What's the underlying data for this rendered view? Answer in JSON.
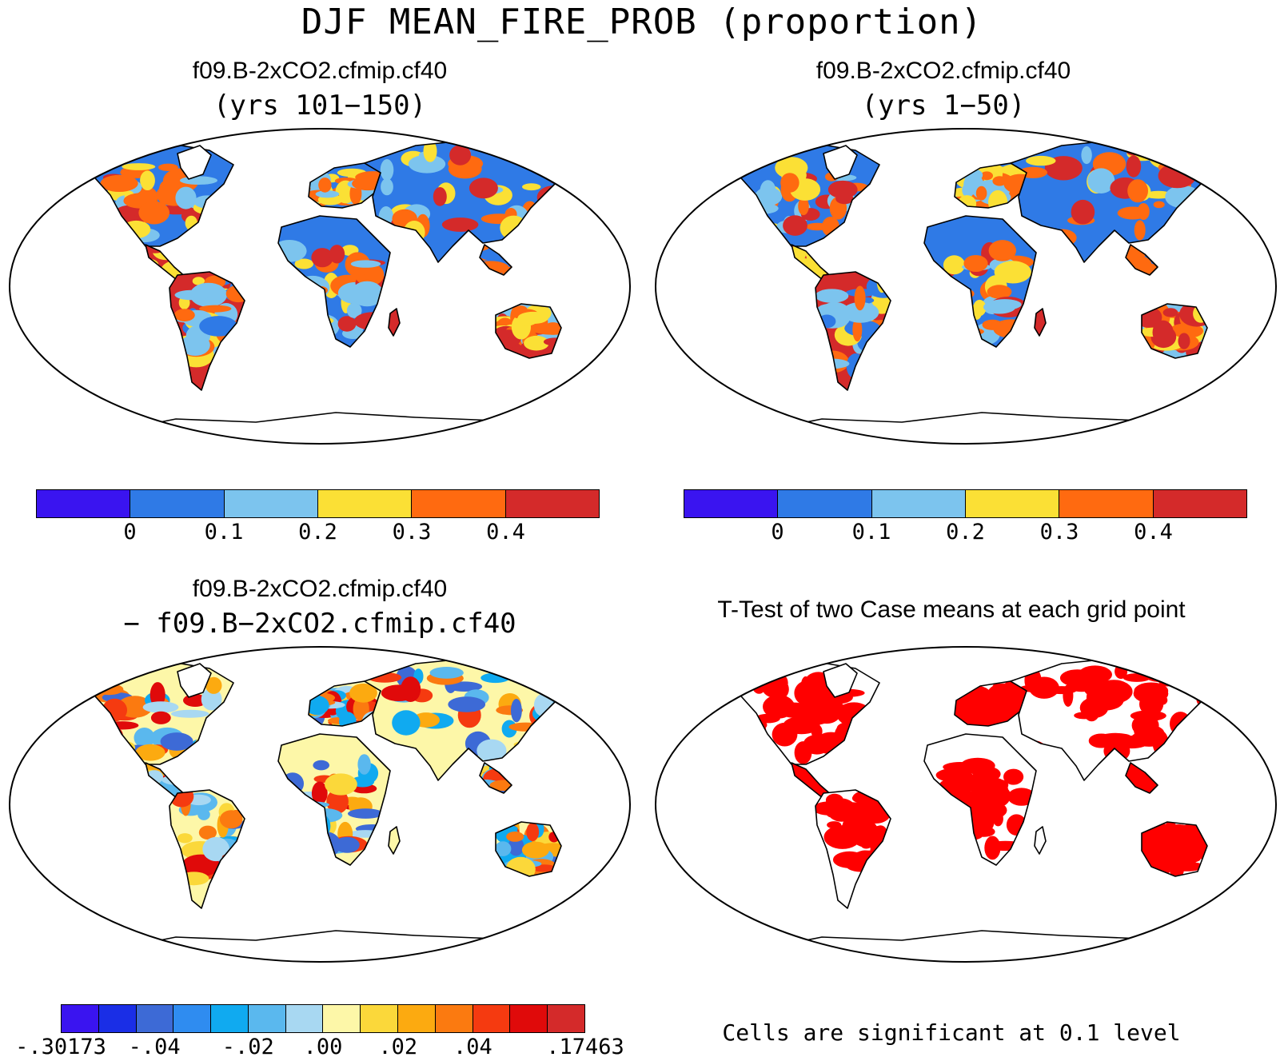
{
  "figure": {
    "title": "DJF MEAN_FIRE_PROB (proportion)",
    "footnote": "Cells are significant at 0.1 level"
  },
  "panels": [
    {
      "title": "f09.B-2xCO2.cfmip.cf40",
      "subtitle": "(yrs 101−150)"
    },
    {
      "title": "f09.B-2xCO2.cfmip.cf40",
      "subtitle": "(yrs 1−50)"
    },
    {
      "title": "f09.B-2xCO2.cfmip.cf40",
      "subtitle": "− f09.B−2xCO2.cfmip.cf40"
    },
    {
      "title": "T-Test of two Case means at each grid point",
      "subtitle": ""
    }
  ],
  "colorbars": {
    "mean": {
      "colors": [
        "#3a14f0",
        "#2f7ae6",
        "#7cc4ee",
        "#fbe035",
        "#ff6a10",
        "#d42a2a"
      ],
      "ticks": [
        "0",
        "0.1",
        "0.2",
        "0.3",
        "0.4"
      ]
    },
    "diff": {
      "colors": [
        "#3a14f0",
        "#1a2ee6",
        "#3d6ad6",
        "#2f8cf0",
        "#10aaf0",
        "#5ab8ee",
        "#a8d8f2",
        "#fdf7a8",
        "#fbd83a",
        "#fcaa10",
        "#fb7a10",
        "#f53a10",
        "#e00a0a",
        "#d42a2a"
      ],
      "ticks": [
        "-.30173",
        "-.04",
        "-.02",
        ".00",
        ".02",
        ".04",
        ".17463"
      ]
    }
  },
  "map_colors": {
    "ocean": "#ffffff",
    "coast": "#000000",
    "significant": "#ff0000",
    "diff_bg": "#fdf7a8"
  }
}
